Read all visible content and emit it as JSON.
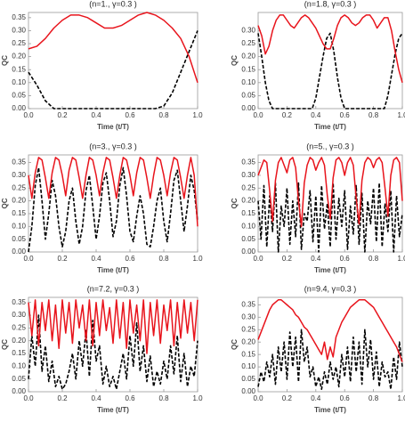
{
  "chart_data": [
    {
      "type": "line",
      "title": "(n=1., γ=0.3 )",
      "xlabel": "Time (t/T)",
      "ylabel": "QC",
      "x": [
        0,
        0.05,
        0.1,
        0.15,
        0.2,
        0.25,
        0.3,
        0.35,
        0.4,
        0.45,
        0.5,
        0.55,
        0.6,
        0.65,
        0.7,
        0.75,
        0.8,
        0.85,
        0.9,
        0.95,
        1
      ],
      "series": [
        {
          "color": "#e8141c",
          "line_style": "solid",
          "values": [
            0.23,
            0.24,
            0.27,
            0.31,
            0.34,
            0.36,
            0.36,
            0.35,
            0.33,
            0.31,
            0.31,
            0.32,
            0.34,
            0.36,
            0.37,
            0.36,
            0.34,
            0.31,
            0.27,
            0.2,
            0.1
          ]
        },
        {
          "color": "#000000",
          "line_style": "dashed",
          "values": [
            0.14,
            0.09,
            0.03,
            0,
            0,
            0,
            0,
            0,
            0,
            0,
            0,
            0,
            0,
            0,
            0,
            0,
            0.01,
            0.06,
            0.14,
            0.22,
            0.3
          ]
        }
      ],
      "xlim": [
        0,
        1
      ],
      "ylim": [
        0,
        0.37
      ],
      "xticks": [
        {
          "value": 0,
          "label": "0.0"
        },
        0.2,
        0.4,
        0.6,
        0.8,
        {
          "value": 1,
          "label": "1.0"
        }
      ],
      "yticks": [
        {
          "value": 0,
          "label": "0.00"
        },
        0.05,
        {
          "value": 0.1,
          "label": "0.10"
        },
        0.15,
        {
          "value": 0.2,
          "label": "0.20"
        },
        0.25,
        {
          "value": 0.3,
          "label": "0.30"
        },
        0.35
      ]
    },
    {
      "type": "line",
      "title": "(n=1.8, γ=0.3 )",
      "xlabel": "Time (t/T)",
      "ylabel": "QC",
      "x": [
        0,
        0.025,
        0.05,
        0.075,
        0.1,
        0.125,
        0.15,
        0.175,
        0.2,
        0.225,
        0.25,
        0.275,
        0.3,
        0.325,
        0.35,
        0.375,
        0.4,
        0.425,
        0.45,
        0.475,
        0.5,
        0.525,
        0.55,
        0.575,
        0.6,
        0.625,
        0.65,
        0.675,
        0.7,
        0.725,
        0.75,
        0.775,
        0.8,
        0.825,
        0.85,
        0.875,
        0.9,
        0.925,
        0.95,
        0.975,
        1
      ],
      "series": [
        {
          "color": "#e8141c",
          "line_style": "solid",
          "values": [
            0.32,
            0.28,
            0.21,
            0.24,
            0.3,
            0.34,
            0.36,
            0.36,
            0.34,
            0.32,
            0.31,
            0.33,
            0.35,
            0.36,
            0.35,
            0.33,
            0.31,
            0.28,
            0.25,
            0.23,
            0.23,
            0.27,
            0.32,
            0.35,
            0.36,
            0.35,
            0.33,
            0.32,
            0.33,
            0.35,
            0.36,
            0.36,
            0.34,
            0.31,
            0.33,
            0.35,
            0.35,
            0.3,
            0.22,
            0.15,
            0.1
          ]
        },
        {
          "color": "#000000",
          "line_style": "dashed",
          "values": [
            0.29,
            0.2,
            0.1,
            0.03,
            0,
            0,
            0,
            0,
            0,
            0,
            0,
            0,
            0,
            0,
            0,
            0,
            0.04,
            0.12,
            0.2,
            0.27,
            0.29,
            0.22,
            0.12,
            0.04,
            0,
            0,
            0,
            0,
            0,
            0,
            0,
            0,
            0,
            0,
            0,
            0,
            0.05,
            0.13,
            0.21,
            0.27,
            0.29
          ]
        }
      ],
      "xlim": [
        0,
        1
      ],
      "ylim": [
        0,
        0.37
      ],
      "xticks": [
        {
          "value": 0,
          "label": "0.0"
        },
        0.2,
        0.4,
        0.6,
        0.8,
        {
          "value": 1,
          "label": "1.0"
        }
      ],
      "yticks": [
        {
          "value": 0,
          "label": "0.00"
        },
        0.05,
        {
          "value": 0.1,
          "label": "0.10"
        },
        0.15,
        {
          "value": 0.2,
          "label": "0.20"
        },
        0.25,
        {
          "value": 0.3,
          "label": "0.30"
        }
      ]
    },
    {
      "type": "line",
      "title": "(n=3., γ=0.3 )",
      "xlabel": "Time (t/T)",
      "ylabel": "QC",
      "x": [
        0,
        0.02,
        0.04,
        0.06,
        0.08,
        0.1,
        0.12,
        0.14,
        0.16,
        0.18,
        0.2,
        0.22,
        0.24,
        0.26,
        0.28,
        0.3,
        0.32,
        0.34,
        0.36,
        0.38,
        0.4,
        0.42,
        0.44,
        0.46,
        0.48,
        0.5,
        0.52,
        0.54,
        0.56,
        0.58,
        0.6,
        0.62,
        0.64,
        0.66,
        0.68,
        0.7,
        0.72,
        0.74,
        0.76,
        0.78,
        0.8,
        0.82,
        0.84,
        0.86,
        0.88,
        0.9,
        0.92,
        0.94,
        0.96,
        0.98,
        1
      ],
      "series": [
        {
          "color": "#e8141c",
          "line_style": "solid",
          "values": [
            0.3,
            0.21,
            0.31,
            0.37,
            0.36,
            0.29,
            0.21,
            0.31,
            0.37,
            0.36,
            0.3,
            0.22,
            0.32,
            0.37,
            0.36,
            0.29,
            0.21,
            0.3,
            0.37,
            0.36,
            0.3,
            0.22,
            0.31,
            0.37,
            0.36,
            0.29,
            0.21,
            0.3,
            0.37,
            0.36,
            0.3,
            0.22,
            0.31,
            0.37,
            0.36,
            0.29,
            0.21,
            0.3,
            0.37,
            0.36,
            0.3,
            0.22,
            0.31,
            0.37,
            0.36,
            0.29,
            0.21,
            0.3,
            0.37,
            0.3,
            0.1
          ]
        },
        {
          "color": "#000000",
          "line_style": "dashed",
          "values": [
            0,
            0.1,
            0.26,
            0.33,
            0.2,
            0.05,
            0.15,
            0.28,
            0.22,
            0.1,
            0.02,
            0.08,
            0.2,
            0.25,
            0.12,
            0.03,
            0.1,
            0.24,
            0.3,
            0.18,
            0.05,
            0.14,
            0.27,
            0.31,
            0.2,
            0.06,
            0.12,
            0.26,
            0.33,
            0.22,
            0.08,
            0.04,
            0.14,
            0.22,
            0.15,
            0.03,
            0.02,
            0.1,
            0.2,
            0.25,
            0.12,
            0.04,
            0.15,
            0.28,
            0.32,
            0.2,
            0.08,
            0.18,
            0.3,
            0.24,
            0.12
          ]
        }
      ],
      "xlim": [
        0,
        1
      ],
      "ylim": [
        0,
        0.38
      ],
      "xticks": [
        {
          "value": 0,
          "label": "0.0"
        },
        0.2,
        0.4,
        0.6,
        0.8,
        {
          "value": 1,
          "label": "1.0"
        }
      ],
      "yticks": [
        {
          "value": 0,
          "label": "0.00"
        },
        0.05,
        {
          "value": 0.1,
          "label": "0.10"
        },
        0.15,
        {
          "value": 0.2,
          "label": "0.20"
        },
        0.25,
        {
          "value": 0.3,
          "label": "0.30"
        },
        0.35
      ]
    },
    {
      "type": "line",
      "title": "(n=5., γ=0.3 )",
      "xlabel": "Time (t/T)",
      "ylabel": "QC",
      "x": [
        0,
        0.02,
        0.04,
        0.06,
        0.08,
        0.1,
        0.12,
        0.14,
        0.16,
        0.18,
        0.2,
        0.22,
        0.24,
        0.26,
        0.28,
        0.3,
        0.32,
        0.34,
        0.36,
        0.38,
        0.4,
        0.42,
        0.44,
        0.46,
        0.48,
        0.5,
        0.52,
        0.54,
        0.56,
        0.58,
        0.6,
        0.62,
        0.64,
        0.66,
        0.68,
        0.7,
        0.72,
        0.74,
        0.76,
        0.78,
        0.8,
        0.82,
        0.84,
        0.86,
        0.88,
        0.9,
        0.92,
        0.94,
        0.96,
        0.98,
        1
      ],
      "series": [
        {
          "color": "#e8141c",
          "line_style": "solid",
          "values": [
            0.3,
            0.33,
            0.36,
            0.35,
            0.24,
            0.12,
            0.28,
            0.35,
            0.37,
            0.34,
            0.31,
            0.36,
            0.37,
            0.33,
            0.2,
            0.1,
            0.27,
            0.34,
            0.37,
            0.36,
            0.32,
            0.35,
            0.37,
            0.34,
            0.22,
            0.13,
            0.29,
            0.36,
            0.37,
            0.35,
            0.3,
            0.35,
            0.37,
            0.34,
            0.21,
            0.11,
            0.28,
            0.35,
            0.37,
            0.36,
            0.33,
            0.36,
            0.37,
            0.35,
            0.25,
            0.14,
            0.3,
            0.36,
            0.37,
            0.35,
            0.2
          ]
        },
        {
          "color": "#000000",
          "line_style": "dashed",
          "values": [
            0.2,
            0.05,
            0.26,
            0.02,
            0.22,
            0.08,
            0.27,
            0,
            0.18,
            0.1,
            0.25,
            0.03,
            0.2,
            0.06,
            0.27,
            0.01,
            0.15,
            0.12,
            0.24,
            0.04,
            0.22,
            0,
            0.26,
            0.09,
            0.19,
            0.02,
            0.27,
            0.05,
            0.21,
            0.1,
            0.24,
            0.01,
            0.18,
            0.07,
            0.26,
            0.03,
            0.23,
            0,
            0.2,
            0.11,
            0.25,
            0.04,
            0.27,
            0.02,
            0.19,
            0.08,
            0.24,
            0,
            0.22,
            0.06,
            0.15
          ]
        }
      ],
      "xlim": [
        0,
        1
      ],
      "ylim": [
        0,
        0.38
      ],
      "xticks": [
        {
          "value": 0,
          "label": "0.0"
        },
        0.2,
        0.4,
        0.6,
        0.8,
        {
          "value": 1,
          "label": "1.0"
        }
      ],
      "yticks": [
        {
          "value": 0,
          "label": "0.00"
        },
        0.05,
        {
          "value": 0.1,
          "label": "0.10"
        },
        0.15,
        {
          "value": 0.2,
          "label": "0.20"
        },
        0.25,
        {
          "value": 0.3,
          "label": "0.30"
        },
        0.35
      ]
    },
    {
      "type": "line",
      "title": "(n=7.2, γ=0.3 )",
      "xlabel": "Time (t/T)",
      "ylabel": "QC",
      "x": [
        0,
        0.02,
        0.04,
        0.06,
        0.08,
        0.1,
        0.12,
        0.14,
        0.16,
        0.18,
        0.2,
        0.22,
        0.24,
        0.26,
        0.28,
        0.3,
        0.32,
        0.34,
        0.36,
        0.38,
        0.4,
        0.42,
        0.44,
        0.46,
        0.48,
        0.5,
        0.52,
        0.54,
        0.56,
        0.58,
        0.6,
        0.62,
        0.64,
        0.66,
        0.68,
        0.7,
        0.72,
        0.74,
        0.76,
        0.78,
        0.8,
        0.82,
        0.84,
        0.86,
        0.88,
        0.9,
        0.92,
        0.94,
        0.96,
        0.98,
        1
      ],
      "series": [
        {
          "color": "#e8141c",
          "line_style": "solid",
          "values": [
            0.35,
            0.22,
            0.36,
            0.18,
            0.35,
            0.24,
            0.36,
            0.2,
            0.34,
            0.17,
            0.36,
            0.23,
            0.35,
            0.19,
            0.36,
            0.25,
            0.34,
            0.2,
            0.36,
            0.18,
            0.35,
            0.22,
            0.36,
            0.24,
            0.33,
            0.19,
            0.36,
            0.21,
            0.35,
            0.17,
            0.36,
            0.23,
            0.34,
            0.2,
            0.36,
            0.15,
            0.35,
            0.22,
            0.36,
            0.19,
            0.34,
            0.24,
            0.36,
            0.18,
            0.35,
            0.21,
            0.36,
            0.23,
            0.35,
            0.2,
            0.36
          ]
        },
        {
          "color": "#000000",
          "line_style": "dashed",
          "values": [
            0.05,
            0.22,
            0.1,
            0.3,
            0.08,
            0.18,
            0.04,
            0.12,
            0.02,
            0.06,
            0.01,
            0.03,
            0.08,
            0.15,
            0.05,
            0.2,
            0.1,
            0.24,
            0.06,
            0.28,
            0.12,
            0.18,
            0.03,
            0.1,
            0.02,
            0.06,
            0.01,
            0.08,
            0.15,
            0.05,
            0.22,
            0.1,
            0.27,
            0.08,
            0.18,
            0.04,
            0.14,
            0.02,
            0.08,
            0.03,
            0.12,
            0.05,
            0.18,
            0.07,
            0.22,
            0.04,
            0.15,
            0.02,
            0.1,
            0.06,
            0.2
          ]
        }
      ],
      "xlim": [
        0,
        1
      ],
      "ylim": [
        0,
        0.37
      ],
      "xticks": [
        {
          "value": 0,
          "label": "0.0"
        },
        0.2,
        0.4,
        0.6,
        0.8,
        {
          "value": 1,
          "label": "1.0"
        }
      ],
      "yticks": [
        {
          "value": 0,
          "label": "0.00"
        },
        0.05,
        {
          "value": 0.1,
          "label": "0.10"
        },
        0.15,
        {
          "value": 0.2,
          "label": "0.20"
        },
        0.25,
        {
          "value": 0.3,
          "label": "0.30"
        },
        0.35
      ]
    },
    {
      "type": "line",
      "title": "(n=9.4, γ=0.3 )",
      "xlabel": "Time (t/T)",
      "ylabel": "QC",
      "x": [
        0,
        0.02,
        0.04,
        0.06,
        0.08,
        0.1,
        0.12,
        0.14,
        0.16,
        0.18,
        0.2,
        0.22,
        0.24,
        0.26,
        0.28,
        0.3,
        0.32,
        0.34,
        0.36,
        0.38,
        0.4,
        0.42,
        0.44,
        0.46,
        0.48,
        0.5,
        0.52,
        0.54,
        0.56,
        0.58,
        0.6,
        0.62,
        0.64,
        0.66,
        0.68,
        0.7,
        0.72,
        0.74,
        0.76,
        0.78,
        0.8,
        0.82,
        0.84,
        0.86,
        0.88,
        0.9,
        0.92,
        0.94,
        0.96,
        0.98,
        1
      ],
      "series": [
        {
          "color": "#e8141c",
          "line_style": "solid",
          "values": [
            0.21,
            0.24,
            0.27,
            0.3,
            0.33,
            0.35,
            0.36,
            0.37,
            0.37,
            0.36,
            0.35,
            0.34,
            0.33,
            0.31,
            0.3,
            0.28,
            0.26,
            0.25,
            0.23,
            0.21,
            0.19,
            0.17,
            0.15,
            0.2,
            0.13,
            0.18,
            0.14,
            0.22,
            0.25,
            0.28,
            0.3,
            0.32,
            0.34,
            0.35,
            0.36,
            0.37,
            0.37,
            0.37,
            0.36,
            0.35,
            0.34,
            0.32,
            0.3,
            0.28,
            0.26,
            0.24,
            0.22,
            0.2,
            0.18,
            0.15,
            0.12
          ]
        },
        {
          "color": "#000000",
          "line_style": "dashed",
          "values": [
            0.02,
            0.08,
            0.04,
            0.12,
            0.06,
            0.15,
            0.03,
            0.18,
            0.08,
            0.2,
            0.05,
            0.24,
            0.1,
            0.22,
            0.04,
            0.25,
            0.12,
            0.18,
            0.06,
            0.1,
            0.02,
            0.06,
            0.01,
            0.08,
            0.03,
            0.12,
            0.05,
            0.1,
            0.02,
            0.15,
            0.06,
            0.18,
            0.04,
            0.22,
            0.08,
            0.2,
            0.03,
            0.25,
            0.1,
            0.21,
            0.05,
            0.16,
            0.02,
            0.12,
            0.06,
            0.08,
            0.01,
            0.14,
            0.05,
            0.2,
            0.1
          ]
        }
      ],
      "xlim": [
        0,
        1
      ],
      "ylim": [
        0,
        0.38
      ],
      "xticks": [
        {
          "value": 0,
          "label": "0.0"
        },
        0.2,
        0.4,
        0.6,
        0.8,
        {
          "value": 1,
          "label": "1.0"
        }
      ],
      "yticks": [
        {
          "value": 0,
          "label": "0.00"
        },
        0.05,
        {
          "value": 0.1,
          "label": "0.10"
        },
        0.15,
        {
          "value": 0.2,
          "label": "0.20"
        },
        0.25,
        {
          "value": 0.3,
          "label": "0.30"
        },
        0.35
      ]
    }
  ]
}
